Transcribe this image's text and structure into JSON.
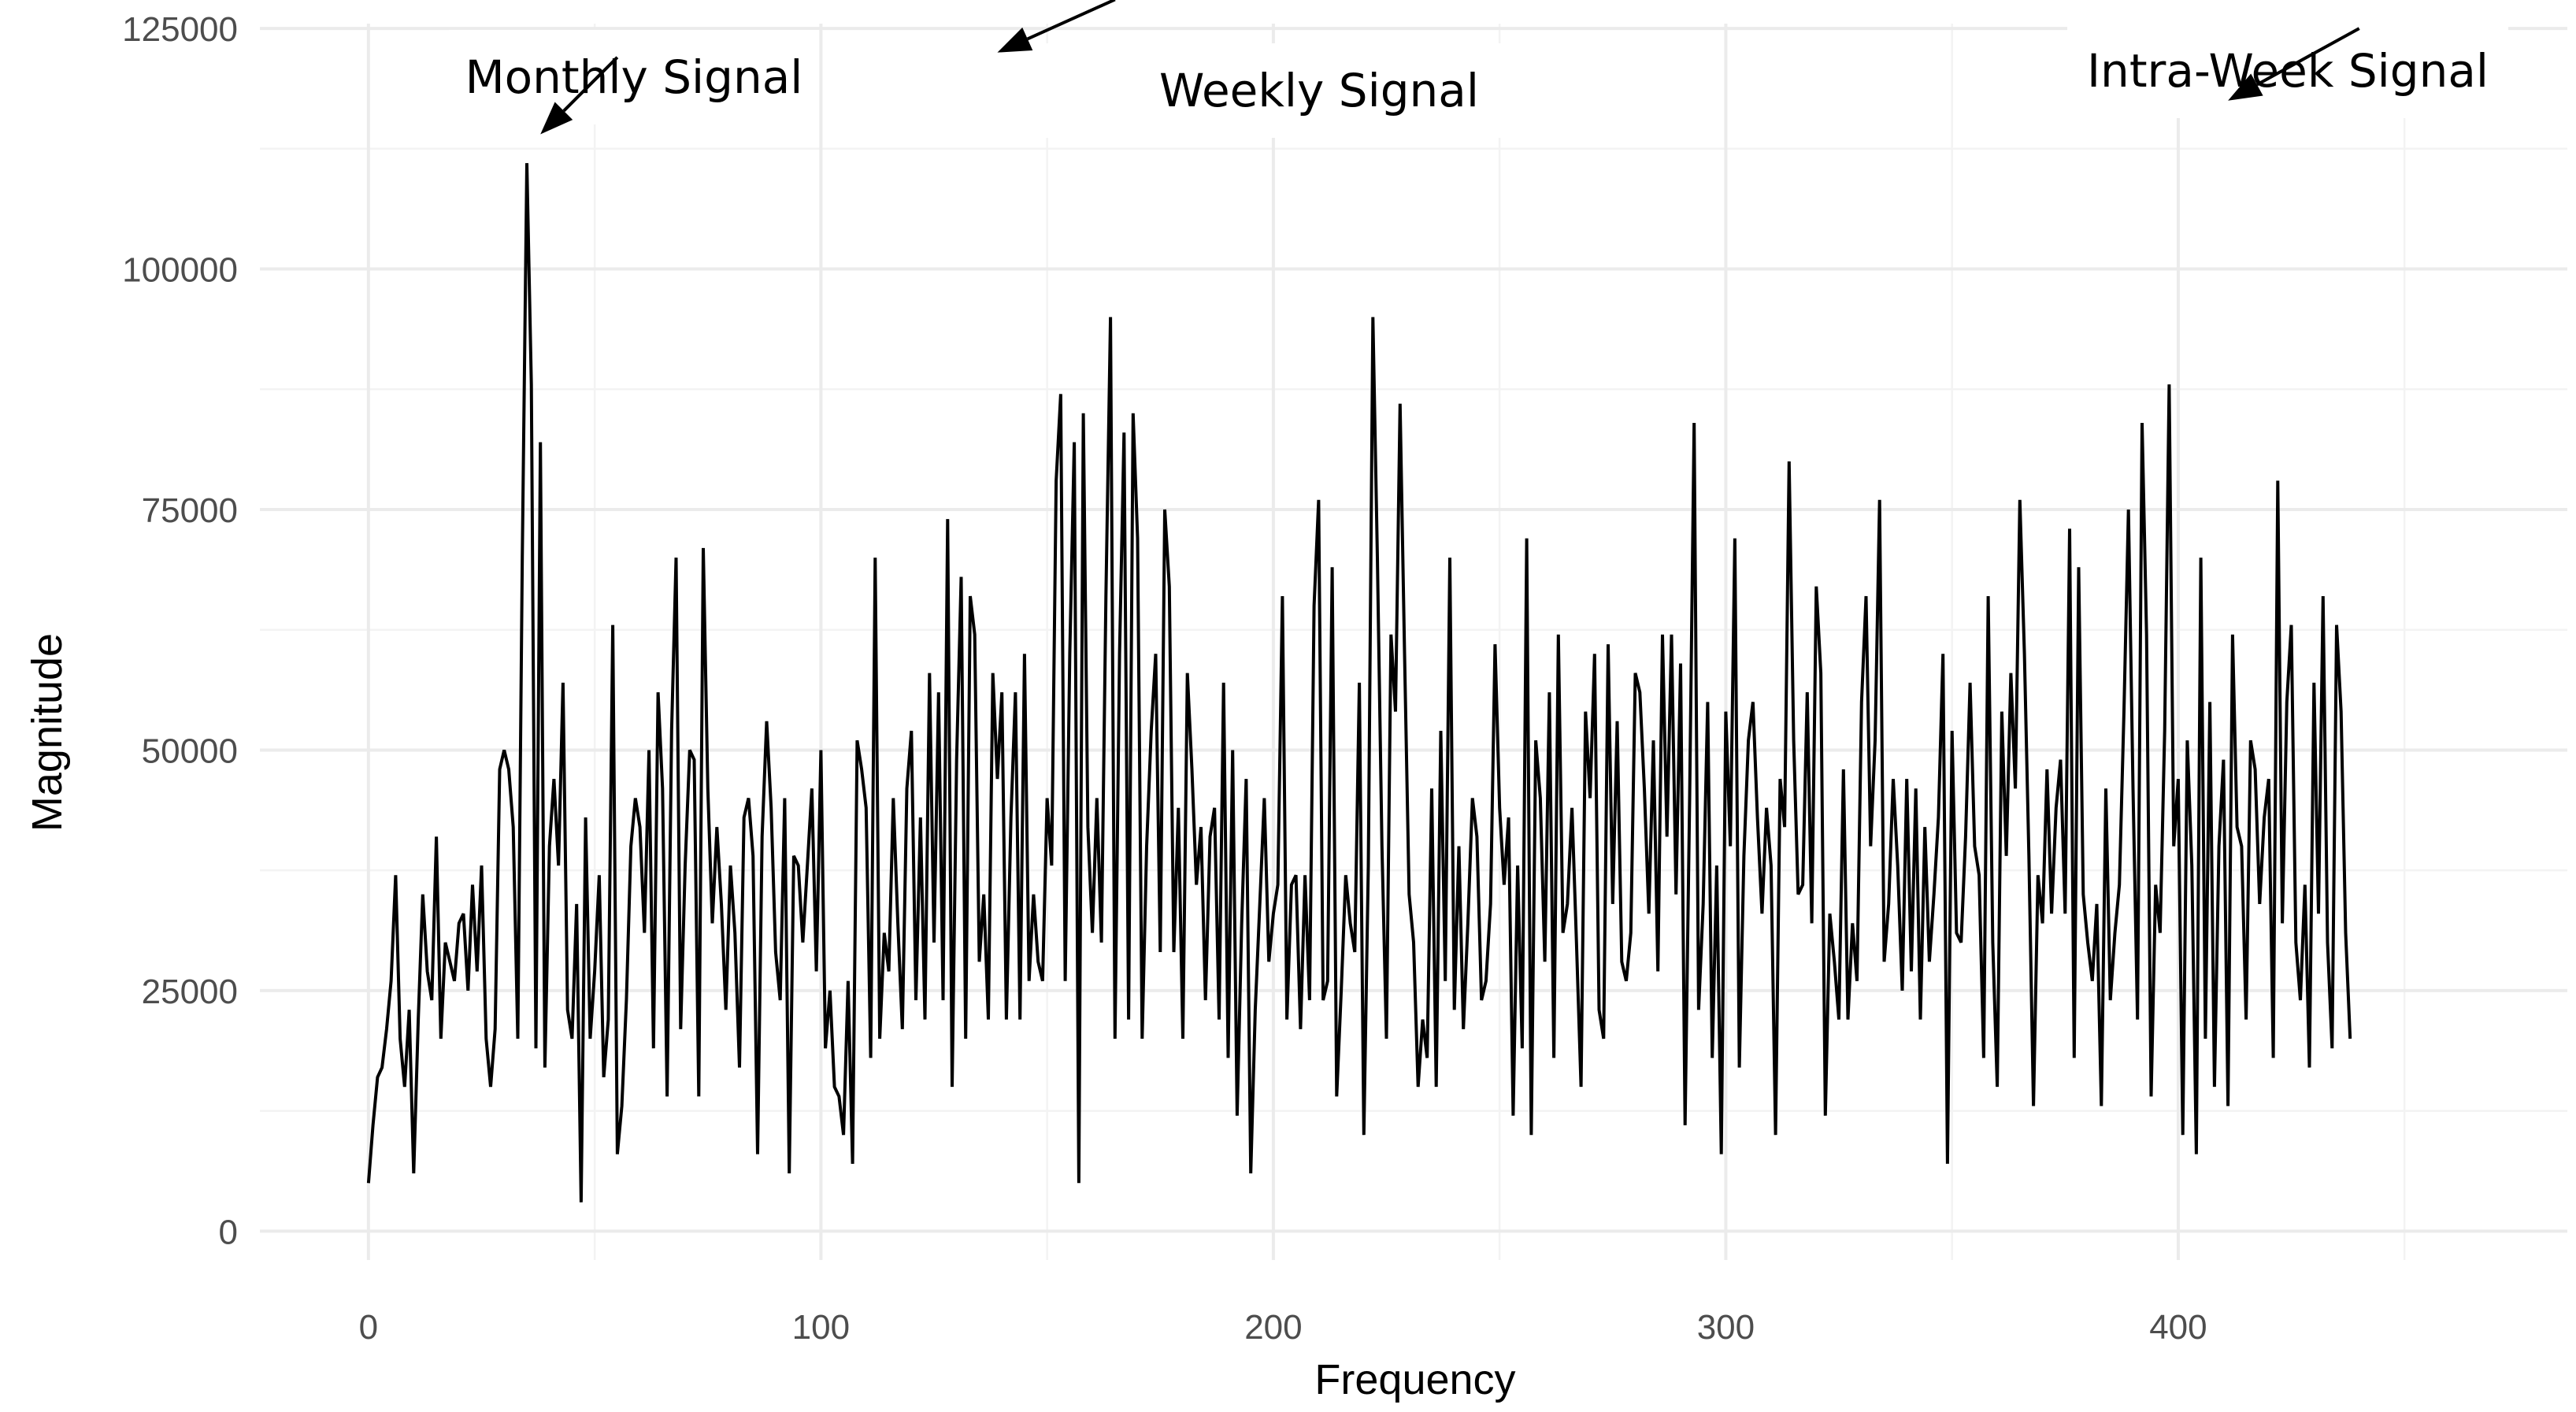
{
  "chart_data": {
    "type": "line",
    "title": "",
    "xlabel": "Frequency",
    "ylabel": "Magnitude",
    "xlim": [
      -24,
      486
    ],
    "ylim": [
      -3000,
      125500
    ],
    "x_ticks": [
      0,
      100,
      200,
      300,
      400
    ],
    "x_tick_labels": [
      "0",
      "100",
      "200",
      "300",
      "400"
    ],
    "y_ticks": [
      0,
      25000,
      50000,
      75000,
      100000,
      125000
    ],
    "y_tick_labels": [
      "0",
      "25000",
      "50000",
      "75000",
      "100000",
      "125000"
    ],
    "grid": true,
    "legend": "none",
    "colors": {
      "line": "#000000",
      "grid": "#ebebeb",
      "tick_text": "#4d4d4d",
      "background": "#ffffff"
    },
    "x_start": 0,
    "x_step": 1,
    "series": [
      {
        "values": [
          5000,
          11000,
          16000,
          17000,
          21000,
          26000,
          37000,
          20000,
          15000,
          23000,
          6000,
          22000,
          35000,
          27000,
          24000,
          41000,
          20000,
          30000,
          28000,
          26000,
          32000,
          33000,
          25000,
          36000,
          27000,
          38000,
          20000,
          15000,
          21000,
          48000,
          50000,
          48000,
          42000,
          20000,
          70000,
          111000,
          88000,
          19000,
          82000,
          17000,
          40000,
          47000,
          38000,
          57000,
          23000,
          20000,
          34000,
          3000,
          43000,
          20000,
          27000,
          37000,
          16000,
          22000,
          63000,
          8000,
          13000,
          24000,
          40000,
          45000,
          42000,
          31000,
          50000,
          19000,
          56000,
          46000,
          14000,
          52000,
          70000,
          21000,
          38000,
          50000,
          49000,
          14000,
          71000,
          46000,
          32000,
          42000,
          34000,
          23000,
          38000,
          31000,
          17000,
          43000,
          45000,
          39000,
          8000,
          41000,
          53000,
          44000,
          29000,
          24000,
          45000,
          6000,
          39000,
          38000,
          30000,
          38000,
          46000,
          27000,
          50000,
          19000,
          25000,
          15000,
          14000,
          10000,
          26000,
          7000,
          51000,
          48000,
          44000,
          18000,
          70000,
          20000,
          31000,
          27000,
          45000,
          32000,
          21000,
          46000,
          52000,
          24000,
          43000,
          22000,
          58000,
          30000,
          56000,
          24000,
          74000,
          15000,
          49000,
          68000,
          20000,
          66000,
          62000,
          28000,
          35000,
          22000,
          58000,
          47000,
          56000,
          22000,
          43000,
          56000,
          22000,
          60000,
          26000,
          35000,
          28000,
          26000,
          45000,
          38000,
          78000,
          87000,
          26000,
          60000,
          82000,
          5000,
          85000,
          42000,
          31000,
          45000,
          30000,
          66000,
          95000,
          20000,
          60000,
          83000,
          22000,
          85000,
          72000,
          20000,
          40000,
          52000,
          60000,
          29000,
          75000,
          67000,
          29000,
          44000,
          20000,
          58000,
          48000,
          36000,
          42000,
          24000,
          41000,
          44000,
          22000,
          57000,
          18000,
          50000,
          12000,
          32000,
          47000,
          6000,
          23000,
          34000,
          45000,
          28000,
          33000,
          36000,
          66000,
          22000,
          36000,
          37000,
          21000,
          37000,
          24000,
          65000,
          76000,
          24000,
          26000,
          69000,
          14000,
          25000,
          37000,
          32000,
          29000,
          57000,
          10000,
          38000,
          95000,
          70000,
          40000,
          20000,
          62000,
          54000,
          86000,
          60000,
          35000,
          30000,
          15000,
          22000,
          18000,
          46000,
          15000,
          52000,
          26000,
          70000,
          23000,
          40000,
          21000,
          32000,
          45000,
          41000,
          24000,
          26000,
          34000,
          61000,
          44000,
          36000,
          43000,
          12000,
          38000,
          19000,
          72000,
          10000,
          51000,
          45000,
          28000,
          56000,
          18000,
          62000,
          31000,
          34000,
          44000,
          30000,
          15000,
          54000,
          45000,
          60000,
          23000,
          20000,
          61000,
          34000,
          53000,
          28000,
          26000,
          31000,
          58000,
          56000,
          46000,
          33000,
          51000,
          27000,
          62000,
          41000,
          62000,
          35000,
          59000,
          11000,
          45000,
          84000,
          23000,
          34000,
          55000,
          18000,
          38000,
          8000,
          54000,
          40000,
          72000,
          17000,
          39000,
          51000,
          55000,
          43000,
          33000,
          44000,
          38000,
          10000,
          47000,
          42000,
          80000,
          51000,
          35000,
          36000,
          56000,
          32000,
          67000,
          58000,
          12000,
          33000,
          28000,
          22000,
          48000,
          22000,
          32000,
          26000,
          55000,
          66000,
          40000,
          51000,
          76000,
          28000,
          34000,
          47000,
          38000,
          25000,
          47000,
          27000,
          46000,
          22000,
          42000,
          28000,
          35000,
          43000,
          60000,
          7000,
          52000,
          31000,
          30000,
          41000,
          57000,
          40000,
          37000,
          18000,
          66000,
          30000,
          15000,
          54000,
          39000,
          58000,
          46000,
          76000,
          60000,
          39000,
          13000,
          37000,
          32000,
          48000,
          33000,
          44000,
          49000,
          33000,
          73000,
          18000,
          69000,
          35000,
          30000,
          26000,
          34000,
          13000,
          46000,
          24000,
          31000,
          36000,
          54000,
          75000,
          46000,
          22000,
          84000,
          62000,
          14000,
          36000,
          31000,
          52000,
          88000,
          40000,
          47000,
          10000,
          51000,
          38000,
          8000,
          70000,
          20000,
          55000,
          15000,
          40000,
          49000,
          13000,
          62000,
          42000,
          40000,
          22000,
          51000,
          48000,
          34000,
          43000,
          47000,
          18000,
          78000,
          32000,
          55000,
          63000,
          30000,
          24000,
          36000,
          17000,
          57000,
          33000,
          66000,
          30000,
          19000,
          63000,
          54000,
          31000,
          20000
        ]
      }
    ],
    "annotations": [
      {
        "text": "Monthly Signal",
        "arrow_tip": {
          "x": 38,
          "y": 114000
        },
        "arrow_tail": {
          "x": 55,
          "y": 122000
        }
      },
      {
        "text": "Weekly Signal",
        "arrow_tip": {
          "x": 139,
          "y": 122500
        },
        "arrow_tail": {
          "x": 165,
          "y": 128000
        }
      },
      {
        "text": "Intra-Week Signal",
        "arrow_tip": {
          "x": 411,
          "y": 117500
        },
        "arrow_tail": {
          "x": 440,
          "y": 125000
        }
      }
    ]
  }
}
